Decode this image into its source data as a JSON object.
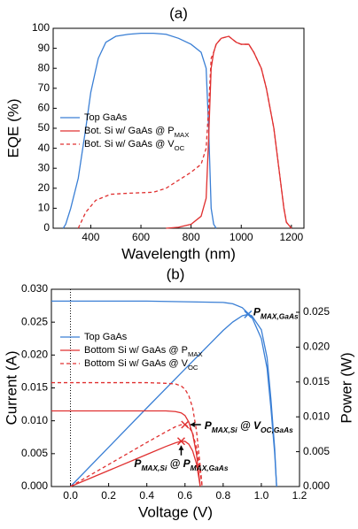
{
  "chart_data": [
    {
      "type": "line",
      "title": "(a)",
      "x_label": "Wavelength (nm)",
      "y_label": "EQE (%)",
      "xlim": [
        250,
        1250
      ],
      "xticks": [
        400,
        600,
        800,
        1000,
        1200
      ],
      "ylim": [
        0,
        100
      ],
      "yticks": [
        0,
        10,
        20,
        30,
        40,
        50,
        60,
        70,
        80,
        90,
        100
      ],
      "series": [
        {
          "name": "Top GaAs",
          "color": "#3a7fd5",
          "dash": false,
          "x": [
            290,
            300,
            320,
            350,
            380,
            400,
            430,
            460,
            500,
            550,
            600,
            650,
            700,
            750,
            800,
            840,
            860,
            870,
            880,
            890,
            900
          ],
          "values": [
            0,
            2,
            10,
            25,
            50,
            68,
            85,
            93,
            96,
            97,
            97.5,
            97.5,
            97,
            95,
            92,
            88,
            80,
            50,
            10,
            2,
            0
          ]
        },
        {
          "name": "Bot. Si w/ GaAs @ PMAX",
          "color": "#e03030",
          "dash": false,
          "x": [
            700,
            750,
            800,
            840,
            860,
            870,
            880,
            890,
            900,
            920,
            950,
            980,
            1000,
            1030,
            1050,
            1080,
            1100,
            1130,
            1150,
            1170,
            1180,
            1200
          ],
          "values": [
            0,
            0.5,
            2,
            6,
            15,
            45,
            80,
            88,
            92,
            95,
            96,
            93,
            92,
            92,
            88,
            80,
            70,
            50,
            30,
            10,
            3,
            0
          ]
        },
        {
          "name": "Bot. Si w/ GaAs @ VOC",
          "color": "#e03030",
          "dash": true,
          "x": [
            350,
            380,
            420,
            480,
            550,
            650,
            700,
            750,
            800,
            840,
            860,
            870,
            880,
            890,
            900,
            920,
            950,
            980,
            1000,
            1030,
            1050,
            1080,
            1100,
            1130,
            1150,
            1170,
            1180,
            1200
          ],
          "values": [
            0,
            8,
            14,
            17,
            17.5,
            18,
            20,
            24,
            28,
            32,
            40,
            60,
            85,
            88,
            92,
            95,
            96,
            93,
            92,
            92,
            88,
            80,
            70,
            50,
            30,
            10,
            3,
            0
          ]
        }
      ]
    },
    {
      "type": "line",
      "title": "(b)",
      "x_label": "Voltage (V)",
      "y_label": "Current (A)",
      "y2_label": "Power (W)",
      "xlim": [
        -0.1,
        1.2
      ],
      "xticks": [
        {
          "value": 0,
          "label": "0.0"
        },
        0.2,
        0.4,
        0.6,
        0.8,
        {
          "value": 1,
          "label": "1.0"
        },
        1.2
      ],
      "ylim": [
        0,
        0.03
      ],
      "yticks": [
        {
          "value": 0,
          "label": "0.000"
        },
        0.005,
        {
          "value": 0.01,
          "label": "0.010"
        },
        0.015,
        {
          "value": 0.02,
          "label": "0.020"
        },
        0.025,
        {
          "value": 0.03,
          "label": "0.030"
        }
      ],
      "y2lim": [
        0,
        0.0283
      ],
      "y2ticks": [
        {
          "value": 0,
          "label": "0.000"
        },
        0.005,
        {
          "value": 0.01,
          "label": "0.010"
        },
        0.015,
        {
          "value": 0.02,
          "label": "0.020"
        },
        0.025
      ],
      "vline": 0,
      "series": [
        {
          "name": "Top GaAs",
          "color": "#3a7fd5",
          "dash": false,
          "x": [
            -0.1,
            0,
            0.2,
            0.4,
            0.6,
            0.8,
            0.85,
            0.9,
            0.95,
            1.0,
            1.03,
            1.05,
            1.07,
            1.08
          ],
          "values": [
            0.0282,
            0.0282,
            0.0282,
            0.0282,
            0.0281,
            0.028,
            0.0278,
            0.0272,
            0.0258,
            0.0225,
            0.018,
            0.012,
            0.005,
            0
          ],
          "power": {
            "axis": "y2",
            "x": [
              0,
              0.2,
              0.4,
              0.6,
              0.8,
              0.85,
              0.9,
              0.93,
              0.95,
              1.0,
              1.03,
              1.05,
              1.07,
              1.08
            ],
            "values": [
              0,
              0.00564,
              0.01128,
              0.01686,
              0.0224,
              0.0236,
              0.0245,
              0.0247,
              0.0245,
              0.0225,
              0.0185,
              0.0126,
              0.0054,
              0
            ]
          }
        },
        {
          "name": "Bottom Si w/ GaAs @ PMAX",
          "color": "#e03030",
          "dash": false,
          "x": [
            -0.1,
            0,
            0.2,
            0.4,
            0.5,
            0.55,
            0.58,
            0.6,
            0.62,
            0.64,
            0.66,
            0.67,
            0.68
          ],
          "values": [
            0.0115,
            0.0115,
            0.0115,
            0.0115,
            0.0115,
            0.0114,
            0.0112,
            0.0108,
            0.0098,
            0.008,
            0.005,
            0.0025,
            0
          ],
          "power": {
            "axis": "y2",
            "x": [
              0,
              0.2,
              0.4,
              0.5,
              0.55,
              0.58,
              0.6,
              0.62,
              0.64,
              0.66,
              0.67,
              0.68
            ],
            "values": [
              0,
              0.0023,
              0.0046,
              0.00575,
              0.00627,
              0.0065,
              0.00648,
              0.00608,
              0.00512,
              0.0033,
              0.00168,
              0
            ]
          }
        },
        {
          "name": "Bottom Si w/ GaAs @ VOC",
          "color": "#e03030",
          "dash": true,
          "x": [
            -0.1,
            0,
            0.2,
            0.4,
            0.5,
            0.55,
            0.58,
            0.6,
            0.62,
            0.64,
            0.66,
            0.68,
            0.69
          ],
          "values": [
            0.0158,
            0.0158,
            0.0158,
            0.0158,
            0.0157,
            0.0156,
            0.0153,
            0.0148,
            0.0138,
            0.012,
            0.0085,
            0.003,
            0
          ],
          "power": {
            "axis": "y2",
            "x": [
              0,
              0.2,
              0.4,
              0.5,
              0.55,
              0.58,
              0.6,
              0.62,
              0.64,
              0.66,
              0.68,
              0.69
            ],
            "values": [
              0,
              0.00316,
              0.00632,
              0.00785,
              0.00858,
              0.00887,
              0.00888,
              0.00856,
              0.00768,
              0.00561,
              0.00204,
              0
            ]
          }
        }
      ],
      "annotations": [
        {
          "text": "PMAX,GaAs",
          "x": 0.93,
          "y": 0.0247,
          "axis": "y2",
          "color": "#3a7fd5"
        },
        {
          "text": "PMAX,Si @ VOC,GaAs",
          "x": 0.6,
          "y": 0.00888,
          "axis": "y2",
          "color": "#e03030"
        },
        {
          "text": "PMAX,Si @ PMAX,GaAs",
          "x": 0.58,
          "y": 0.0065,
          "axis": "y2",
          "color": "#e03030"
        }
      ]
    }
  ]
}
